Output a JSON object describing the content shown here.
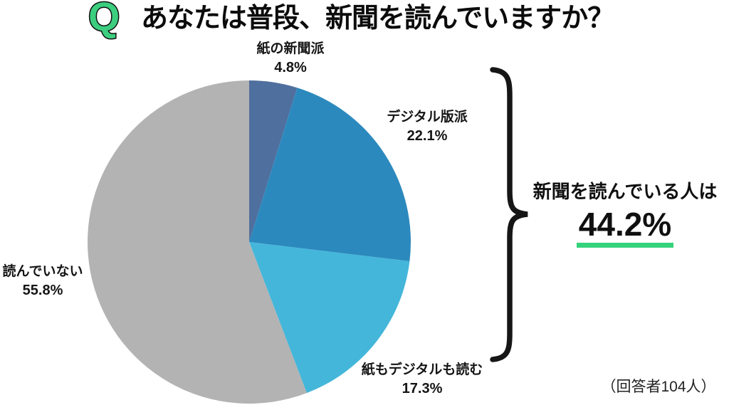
{
  "header": {
    "q_badge": "Q",
    "title": "あなたは普段、新聞を読んでいますか？"
  },
  "chart_data": {
    "type": "pie",
    "title": "あなたは普段、新聞を読んでいますか？",
    "start_angle": "12-oclock",
    "direction": "clockwise",
    "unit": "%",
    "categories": [
      "紙の新聞派",
      "デジタル版派",
      "紙もデジタルも読む",
      "読んでいない"
    ],
    "values": [
      4.8,
      22.1,
      17.3,
      55.8
    ],
    "colors": [
      "#4F6F9E",
      "#2C89BD",
      "#44B6DA",
      "#B3B3B3"
    ],
    "labels": [
      {
        "name": "紙の新聞派",
        "value": "4.8%"
      },
      {
        "name": "デジタル版派",
        "value": "22.1%"
      },
      {
        "name": "紙もデジタルも読む",
        "value": "17.3%"
      },
      {
        "name": "読んでいない",
        "value": "55.8%"
      }
    ]
  },
  "annotation": {
    "lead": "新聞を読んでいる人は",
    "value": "44.2%",
    "underline_color": "#34D37C"
  },
  "footnote": "（回答者104人）",
  "colors": {
    "brand_green": "#3CCE7F",
    "brace": "#161616"
  }
}
